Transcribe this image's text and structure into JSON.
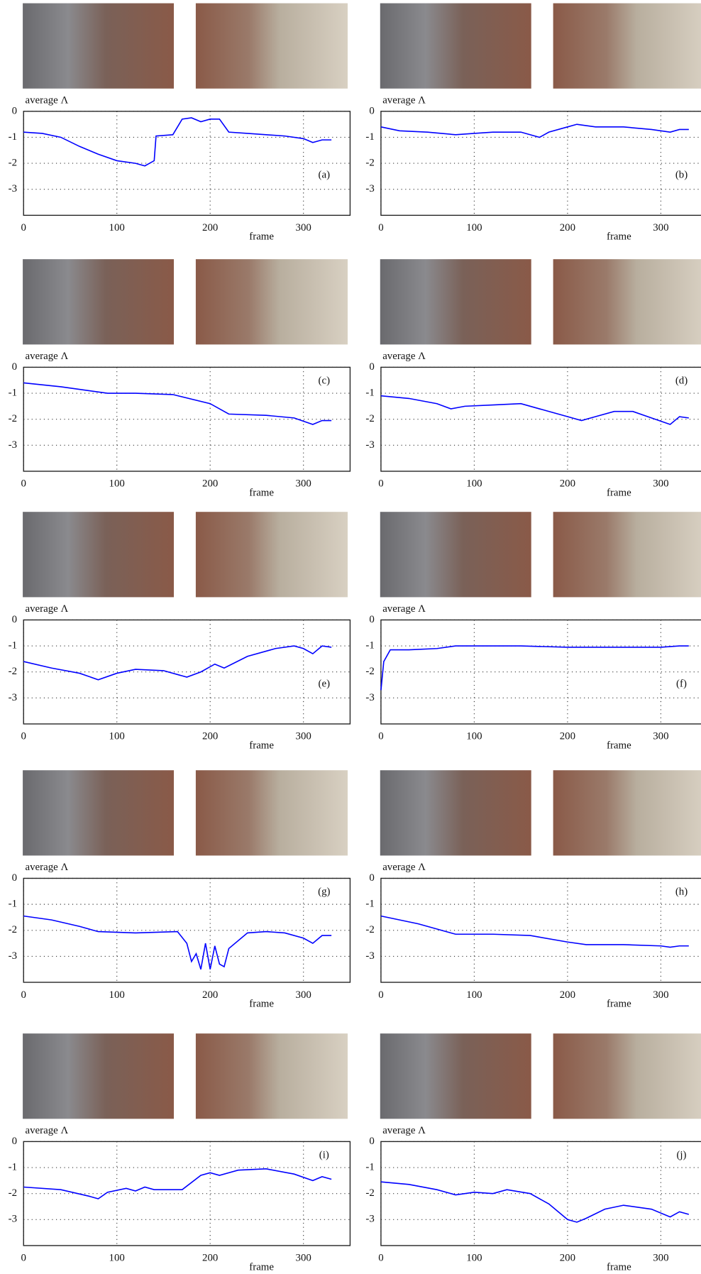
{
  "chart_data": [
    {
      "type": "line",
      "label": "(a)",
      "y_label": "average Λ",
      "x_label": "frame",
      "color": "#0000ff",
      "xlim": [
        0,
        350
      ],
      "ylim": [
        -4,
        0
      ],
      "xticks": [
        0,
        100,
        200,
        300
      ],
      "yticks": [
        0,
        -1,
        -2,
        -3
      ],
      "grid": true,
      "x": [
        0,
        20,
        40,
        60,
        80,
        100,
        120,
        130,
        140,
        142,
        160,
        170,
        180,
        190,
        200,
        210,
        220,
        240,
        260,
        280,
        300,
        310,
        320,
        330
      ],
      "values": [
        -0.8,
        -0.85,
        -1.0,
        -1.35,
        -1.65,
        -1.9,
        -2.0,
        -2.1,
        -1.9,
        -0.95,
        -0.9,
        -0.3,
        -0.25,
        -0.4,
        -0.3,
        -0.3,
        -0.8,
        -0.85,
        -0.9,
        -0.95,
        -1.05,
        -1.2,
        -1.1,
        -1.1
      ]
    },
    {
      "type": "line",
      "label": "(b)",
      "y_label": "average Λ",
      "x_label": "frame",
      "color": "#0000ff",
      "xlim": [
        0,
        350
      ],
      "ylim": [
        -4,
        0
      ],
      "xticks": [
        0,
        100,
        200,
        300
      ],
      "yticks": [
        0,
        -1,
        -2,
        -3
      ],
      "grid": true,
      "x": [
        0,
        20,
        50,
        80,
        100,
        120,
        150,
        170,
        180,
        200,
        210,
        230,
        260,
        290,
        310,
        320,
        330
      ],
      "values": [
        -0.6,
        -0.75,
        -0.8,
        -0.9,
        -0.85,
        -0.8,
        -0.8,
        -1.0,
        -0.8,
        -0.6,
        -0.5,
        -0.6,
        -0.6,
        -0.7,
        -0.8,
        -0.7,
        -0.7
      ]
    },
    {
      "type": "line",
      "label": "(c)",
      "y_label": "average Λ",
      "x_label": "frame",
      "color": "#0000ff",
      "xlim": [
        0,
        350
      ],
      "ylim": [
        -4,
        0
      ],
      "xticks": [
        0,
        100,
        200,
        300
      ],
      "yticks": [
        0,
        -1,
        -2,
        -3
      ],
      "grid": true,
      "x": [
        0,
        40,
        70,
        90,
        120,
        160,
        200,
        220,
        260,
        290,
        310,
        320,
        330
      ],
      "values": [
        -0.6,
        -0.75,
        -0.9,
        -1.0,
        -1.0,
        -1.05,
        -1.4,
        -1.8,
        -1.85,
        -1.95,
        -2.2,
        -2.05,
        -2.05
      ]
    },
    {
      "type": "line",
      "label": "(d)",
      "y_label": "average Λ",
      "x_label": "frame",
      "color": "#0000ff",
      "xlim": [
        0,
        350
      ],
      "ylim": [
        -4,
        0
      ],
      "xticks": [
        0,
        100,
        200,
        300
      ],
      "yticks": [
        0,
        -1,
        -2,
        -3
      ],
      "grid": true,
      "x": [
        0,
        30,
        60,
        75,
        90,
        120,
        150,
        170,
        200,
        215,
        230,
        250,
        270,
        290,
        310,
        320,
        330
      ],
      "values": [
        -1.1,
        -1.2,
        -1.4,
        -1.6,
        -1.5,
        -1.45,
        -1.4,
        -1.6,
        -1.9,
        -2.05,
        -1.9,
        -1.7,
        -1.7,
        -1.95,
        -2.2,
        -1.9,
        -1.95
      ]
    },
    {
      "type": "line",
      "label": "(e)",
      "y_label": "average Λ",
      "x_label": "frame",
      "color": "#0000ff",
      "xlim": [
        0,
        350
      ],
      "ylim": [
        -4,
        0
      ],
      "xticks": [
        0,
        100,
        200,
        300
      ],
      "yticks": [
        0,
        -1,
        -2,
        -3
      ],
      "grid": true,
      "x": [
        0,
        30,
        60,
        80,
        100,
        120,
        150,
        175,
        190,
        205,
        215,
        240,
        270,
        290,
        300,
        310,
        320,
        330
      ],
      "values": [
        -1.6,
        -1.85,
        -2.05,
        -2.3,
        -2.05,
        -1.9,
        -1.95,
        -2.2,
        -2.0,
        -1.7,
        -1.85,
        -1.4,
        -1.1,
        -1.0,
        -1.1,
        -1.3,
        -1.0,
        -1.05
      ]
    },
    {
      "type": "line",
      "label": "(f)",
      "y_label": "average Λ",
      "x_label": "frame",
      "color": "#0000ff",
      "xlim": [
        0,
        350
      ],
      "ylim": [
        -4,
        0
      ],
      "xticks": [
        0,
        100,
        200,
        300
      ],
      "yticks": [
        0,
        -1,
        -2,
        -3
      ],
      "grid": true,
      "x": [
        0,
        3,
        10,
        30,
        60,
        80,
        150,
        200,
        250,
        300,
        320,
        330
      ],
      "values": [
        -2.7,
        -1.6,
        -1.15,
        -1.15,
        -1.1,
        -1.0,
        -1.0,
        -1.05,
        -1.05,
        -1.05,
        -1.0,
        -1.0
      ]
    },
    {
      "type": "line",
      "label": "(g)",
      "y_label": "average Λ",
      "x_label": "frame",
      "color": "#0000ff",
      "xlim": [
        0,
        350
      ],
      "ylim": [
        -4,
        0
      ],
      "xticks": [
        0,
        100,
        200,
        300
      ],
      "yticks": [
        0,
        -1,
        -2,
        -3
      ],
      "grid": true,
      "x": [
        0,
        30,
        60,
        80,
        120,
        165,
        175,
        180,
        185,
        190,
        195,
        200,
        205,
        210,
        215,
        220,
        240,
        260,
        280,
        300,
        310,
        320,
        330
      ],
      "values": [
        -1.45,
        -1.6,
        -1.85,
        -2.05,
        -2.1,
        -2.05,
        -2.5,
        -3.2,
        -2.9,
        -3.5,
        -2.5,
        -3.5,
        -2.6,
        -3.3,
        -3.4,
        -2.7,
        -2.1,
        -2.05,
        -2.1,
        -2.3,
        -2.5,
        -2.2,
        -2.2
      ]
    },
    {
      "type": "line",
      "label": "(h)",
      "y_label": "average Λ",
      "x_label": "frame",
      "color": "#0000ff",
      "xlim": [
        0,
        350
      ],
      "ylim": [
        -4,
        0
      ],
      "xticks": [
        0,
        100,
        200,
        300
      ],
      "yticks": [
        0,
        -1,
        -2,
        -3
      ],
      "grid": true,
      "x": [
        0,
        40,
        70,
        80,
        120,
        160,
        200,
        220,
        260,
        300,
        310,
        320,
        330
      ],
      "values": [
        -1.45,
        -1.75,
        -2.05,
        -2.15,
        -2.15,
        -2.2,
        -2.45,
        -2.55,
        -2.55,
        -2.6,
        -2.65,
        -2.6,
        -2.6
      ]
    },
    {
      "type": "line",
      "label": "(i)",
      "y_label": "average Λ",
      "x_label": "frame",
      "color": "#0000ff",
      "xlim": [
        0,
        350
      ],
      "ylim": [
        -4,
        0
      ],
      "xticks": [
        0,
        100,
        200,
        300
      ],
      "yticks": [
        0,
        -1,
        -2,
        -3
      ],
      "grid": true,
      "x": [
        0,
        40,
        70,
        80,
        90,
        110,
        120,
        130,
        140,
        170,
        190,
        200,
        210,
        230,
        260,
        290,
        310,
        320,
        330
      ],
      "values": [
        -1.75,
        -1.85,
        -2.1,
        -2.2,
        -1.95,
        -1.8,
        -1.9,
        -1.75,
        -1.85,
        -1.85,
        -1.3,
        -1.2,
        -1.3,
        -1.1,
        -1.05,
        -1.25,
        -1.5,
        -1.35,
        -1.45
      ]
    },
    {
      "type": "line",
      "label": "(j)",
      "y_label": "average Λ",
      "x_label": "frame",
      "color": "#0000ff",
      "xlim": [
        0,
        350
      ],
      "ylim": [
        -4,
        0
      ],
      "xticks": [
        0,
        100,
        200,
        300
      ],
      "yticks": [
        0,
        -1,
        -2,
        -3
      ],
      "grid": true,
      "x": [
        0,
        30,
        60,
        80,
        100,
        120,
        135,
        160,
        180,
        200,
        210,
        220,
        240,
        260,
        290,
        310,
        320,
        330
      ],
      "values": [
        -1.55,
        -1.65,
        -1.85,
        -2.05,
        -1.95,
        -2.0,
        -1.85,
        -2.0,
        -2.4,
        -3.0,
        -3.1,
        -2.95,
        -2.6,
        -2.45,
        -2.6,
        -2.9,
        -2.7,
        -2.8
      ]
    }
  ]
}
